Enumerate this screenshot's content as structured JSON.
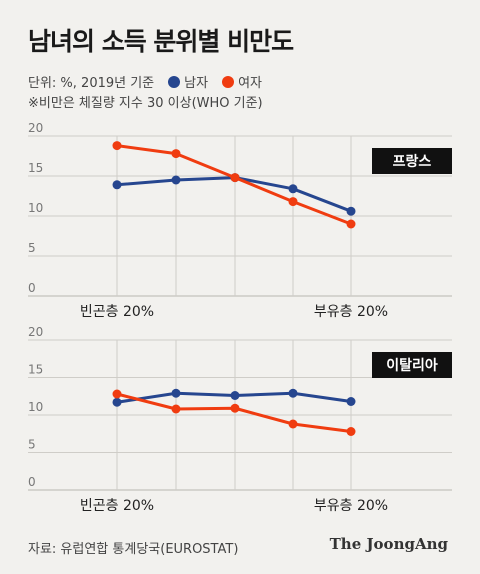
{
  "title": "남녀의 소득 분위별 비만도",
  "unit": "단위: %, 2019년 기준",
  "note": "※비만은 체질량 지수 30 이상(WHO 기준)",
  "legend": [
    {
      "name": "남자",
      "color": "#26468f"
    },
    {
      "name": "여자",
      "color": "#f03c10"
    }
  ],
  "source": "자료: 유럽연합 통계당국(EUROSTAT)",
  "brand": "The JoongAng",
  "chart_data": [
    {
      "type": "line",
      "country": "프랑스",
      "x": [
        1,
        2,
        3,
        4,
        5
      ],
      "tick_labels": {
        "first": "빈곤층 20%",
        "last": "부유층 20%"
      },
      "yticks": [
        0,
        5,
        10,
        15,
        20
      ],
      "ylim": [
        0,
        20
      ],
      "grid": true,
      "series": [
        {
          "name": "남자",
          "color": "#26468f",
          "values": [
            13.9,
            14.5,
            14.8,
            13.4,
            10.6
          ]
        },
        {
          "name": "여자",
          "color": "#f03c10",
          "values": [
            18.8,
            17.8,
            14.8,
            11.8,
            9.0
          ]
        }
      ]
    },
    {
      "type": "line",
      "country": "이탈리아",
      "x": [
        1,
        2,
        3,
        4,
        5
      ],
      "tick_labels": {
        "first": "빈곤층 20%",
        "last": "부유층 20%"
      },
      "yticks": [
        0,
        5,
        10,
        15,
        20
      ],
      "ylim": [
        0,
        20
      ],
      "grid": true,
      "series": [
        {
          "name": "남자",
          "color": "#26468f",
          "values": [
            11.7,
            12.9,
            12.6,
            12.9,
            11.8
          ]
        },
        {
          "name": "여자",
          "color": "#f03c10",
          "values": [
            12.8,
            10.8,
            10.9,
            8.8,
            7.8
          ]
        }
      ]
    }
  ]
}
